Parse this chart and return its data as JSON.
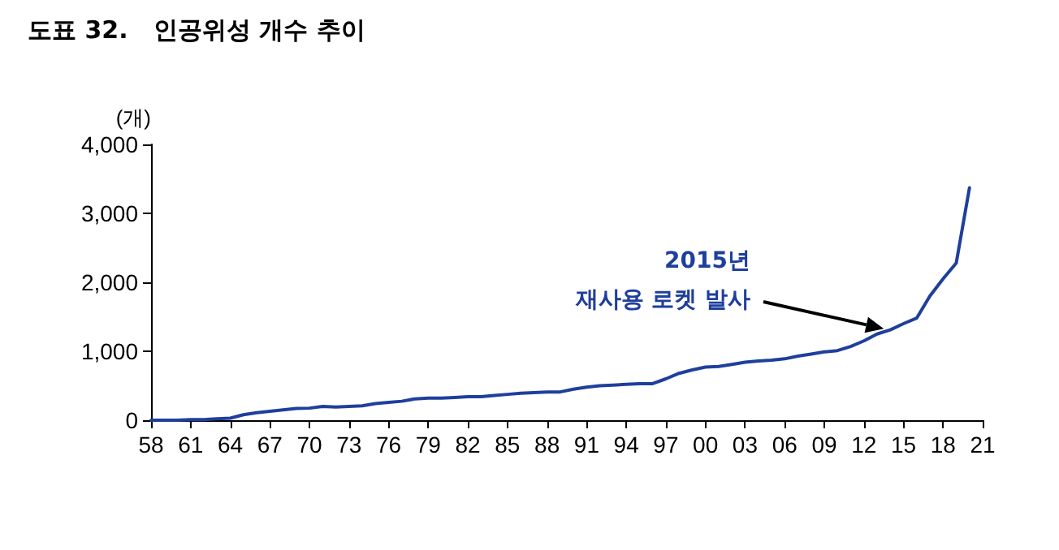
{
  "chart_data": {
    "type": "line",
    "title": "도표 32.   인공위성 개수 추이",
    "ylabel": "(개)",
    "categories": [
      "58",
      null,
      null,
      "61",
      null,
      null,
      "64",
      null,
      null,
      "67",
      null,
      null,
      "70",
      null,
      null,
      "73",
      null,
      null,
      "76",
      null,
      null,
      "79",
      null,
      null,
      "82",
      null,
      null,
      "85",
      null,
      null,
      "88",
      null,
      null,
      "91",
      null,
      null,
      "94",
      null,
      null,
      "97",
      null,
      null,
      "00",
      null,
      null,
      "03",
      null,
      null,
      "06",
      null,
      null,
      "09",
      null,
      null,
      "12",
      null,
      null,
      "15",
      null,
      null,
      "18",
      null,
      null,
      "21"
    ],
    "series": [
      {
        "color": "#1f3f9c",
        "values": [
          0,
          0,
          0,
          10,
          10,
          20,
          30,
          80,
          110,
          130,
          150,
          170,
          175,
          200,
          190,
          200,
          210,
          240,
          260,
          275,
          310,
          320,
          320,
          330,
          340,
          340,
          360,
          375,
          390,
          400,
          410,
          410,
          450,
          480,
          500,
          510,
          520,
          530,
          530,
          600,
          680,
          730,
          770,
          780,
          810,
          840,
          860,
          870,
          890,
          930,
          960,
          990,
          1010,
          1070,
          1150,
          1250,
          1310,
          1400,
          1480,
          1800,
          2050,
          2280,
          3370,
          null
        ]
      }
    ],
    "ylim": [
      0,
      4000
    ],
    "yticks": [
      0,
      {
        "value": 1000,
        "label": "1,000"
      },
      {
        "value": 2000,
        "label": "2,000"
      },
      {
        "value": 3000,
        "label": "3,000"
      },
      {
        "value": 4000,
        "label": "4,000"
      }
    ],
    "grid": false,
    "marker": "none",
    "line_style": "solid",
    "annotations": [
      "2015년\n재사용 로켓 발사"
    ]
  }
}
